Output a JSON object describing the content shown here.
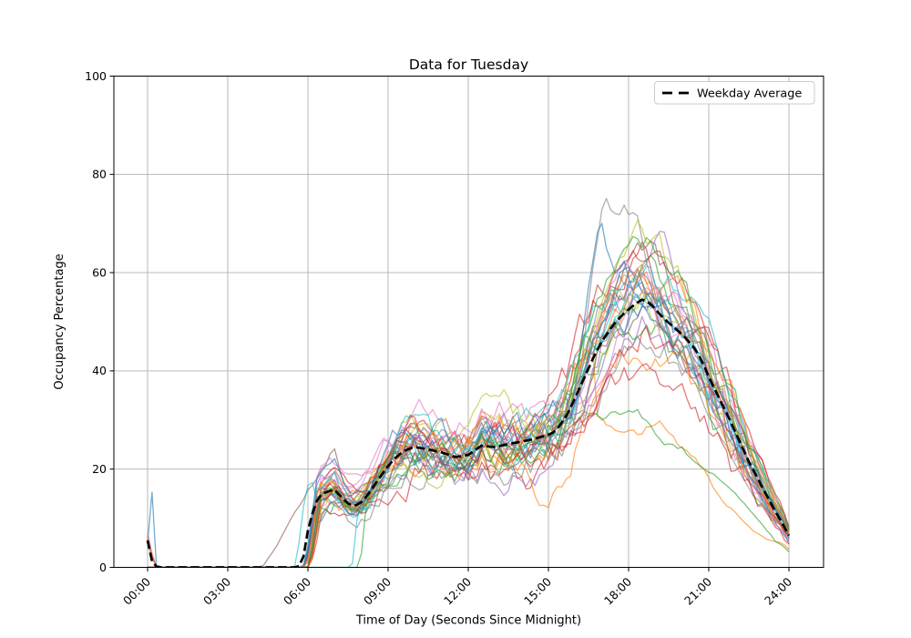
{
  "chart_data": {
    "type": "line",
    "title": "Data for Tuesday",
    "xlabel": "Time of Day (Seconds Since Midnight)",
    "ylabel": "Occupancy Percentage",
    "xlim_hours": [
      0,
      24
    ],
    "ylim": [
      0,
      100
    ],
    "grid": true,
    "grid_color": "#b0b0b0",
    "x_tick_hours": [
      0,
      3,
      6,
      9,
      12,
      15,
      18,
      21,
      24
    ],
    "x_tick_labels": [
      "00:00",
      "03:00",
      "06:00",
      "09:00",
      "12:00",
      "15:00",
      "18:00",
      "21:00",
      "24:00"
    ],
    "y_ticks": [
      0,
      20,
      40,
      60,
      80,
      100
    ],
    "legend": {
      "position": "upper right",
      "entries": [
        {
          "label": "Weekday Average",
          "style": "dashed",
          "color": "#000000"
        }
      ]
    },
    "average_series": {
      "name": "Weekday Average",
      "color": "#000000",
      "dash": true,
      "linewidth": 2.7,
      "points": [
        [
          0,
          5.5
        ],
        [
          0.08,
          3.2
        ],
        [
          0.17,
          1.2
        ],
        [
          0.3,
          0.2
        ],
        [
          0.5,
          0
        ],
        [
          2,
          0
        ],
        [
          4,
          0
        ],
        [
          5,
          0
        ],
        [
          5.6,
          0
        ],
        [
          5.75,
          0.6
        ],
        [
          5.9,
          3.5
        ],
        [
          6,
          7.5
        ],
        [
          6.17,
          11
        ],
        [
          6.33,
          13.5
        ],
        [
          6.5,
          14.8
        ],
        [
          6.75,
          15.5
        ],
        [
          7,
          15.8
        ],
        [
          7.25,
          14.3
        ],
        [
          7.5,
          13
        ],
        [
          7.75,
          12.4
        ],
        [
          8,
          13.3
        ],
        [
          8.25,
          14.8
        ],
        [
          8.5,
          16.8
        ],
        [
          8.75,
          18.8
        ],
        [
          9,
          20.6
        ],
        [
          9.25,
          22.2
        ],
        [
          9.5,
          23.3
        ],
        [
          9.75,
          24.1
        ],
        [
          10,
          24.5
        ],
        [
          10.5,
          24
        ],
        [
          11,
          23.4
        ],
        [
          11.5,
          22.5
        ],
        [
          11.75,
          22.6
        ],
        [
          12,
          22.9
        ],
        [
          12.25,
          23.8
        ],
        [
          12.5,
          24.8
        ],
        [
          12.75,
          24.6
        ],
        [
          13,
          24.5
        ],
        [
          13.5,
          25.1
        ],
        [
          14,
          25.6
        ],
        [
          14.5,
          26.2
        ],
        [
          15,
          27
        ],
        [
          15.25,
          27.6
        ],
        [
          15.5,
          29.5
        ],
        [
          15.75,
          31.5
        ],
        [
          16,
          34.5
        ],
        [
          16.25,
          37.5
        ],
        [
          16.5,
          40.5
        ],
        [
          16.75,
          43.5
        ],
        [
          17,
          46
        ],
        [
          17.25,
          48
        ],
        [
          17.5,
          49.8
        ],
        [
          17.75,
          51.3
        ],
        [
          18,
          52.5
        ],
        [
          18.25,
          53.6
        ],
        [
          18.5,
          54.5
        ],
        [
          18.75,
          54
        ],
        [
          19,
          52.6
        ],
        [
          19.25,
          51
        ],
        [
          19.5,
          49.8
        ],
        [
          19.75,
          48.6
        ],
        [
          20,
          47.4
        ],
        [
          20.25,
          46
        ],
        [
          20.5,
          44.3
        ],
        [
          20.75,
          42
        ],
        [
          21,
          38.8
        ],
        [
          21.25,
          36
        ],
        [
          21.5,
          33.2
        ],
        [
          21.75,
          30.5
        ],
        [
          22,
          27.5
        ],
        [
          22.25,
          24.5
        ],
        [
          22.5,
          21.5
        ],
        [
          22.75,
          19
        ],
        [
          23,
          16.3
        ],
        [
          23.25,
          13.8
        ],
        [
          23.5,
          11.3
        ],
        [
          23.75,
          9
        ],
        [
          24,
          6.5
        ]
      ]
    },
    "individual_traces": {
      "count": 34,
      "alpha": 0.62,
      "linewidth": 1.3,
      "palette": [
        "#1f77b4",
        "#ff7f0e",
        "#2ca02c",
        "#d62728",
        "#9467bd",
        "#8c564b",
        "#e377c2",
        "#7f7f7f",
        "#bcbd22",
        "#17becf"
      ],
      "series": [
        {
          "c": 0,
          "seed": 11,
          "fm": 1.0,
          "fe": 1.0,
          "keys": [
            [
              0,
              5
            ],
            [
              0.12,
              21
            ],
            [
              0.3,
              0
            ]
          ]
        },
        {
          "c": 1,
          "seed": 22,
          "fm": 0.95,
          "fe": 1.0,
          "keys": [
            [
              16.8,
              30
            ],
            [
              17.2,
              28
            ],
            [
              17.6,
              27
            ],
            [
              18,
              26.5
            ],
            [
              18.4,
              26
            ],
            [
              18.8,
              28
            ],
            [
              19.2,
              30
            ],
            [
              19.6,
              27
            ],
            [
              20,
              24
            ],
            [
              20.4,
              22.5
            ],
            [
              20.8,
              20
            ],
            [
              21.2,
              15.5
            ],
            [
              21.6,
              13
            ],
            [
              22,
              11
            ],
            [
              22.4,
              9
            ],
            [
              22.8,
              7
            ],
            [
              23.2,
              5.5
            ],
            [
              23.6,
              5
            ],
            [
              24,
              3.5
            ]
          ]
        },
        {
          "c": 2,
          "seed": 33,
          "fm": 0.9,
          "fe": 1.0,
          "sv": 6.5,
          "keys": [
            [
              15.9,
              28
            ],
            [
              16.3,
              30.5
            ],
            [
              16.7,
              31
            ],
            [
              17.1,
              30
            ],
            [
              17.5,
              31.5
            ],
            [
              17.9,
              30.5
            ],
            [
              18.3,
              31
            ],
            [
              18.7,
              29
            ],
            [
              19.1,
              26.5
            ],
            [
              19.5,
              25
            ],
            [
              20,
              24
            ],
            [
              20.5,
              22
            ],
            [
              21,
              20
            ],
            [
              21.5,
              17
            ],
            [
              22,
              14
            ],
            [
              22.5,
              11
            ],
            [
              23,
              8
            ],
            [
              23.5,
              5
            ],
            [
              24,
              3
            ]
          ]
        },
        {
          "c": 3,
          "seed": 44,
          "fm": 0.85,
          "fe": 1.15,
          "sv": 5,
          "dip": [
            14.2,
            1.1,
            0.45
          ]
        },
        {
          "c": 4,
          "seed": 55,
          "fm": 1.0,
          "fe": 1.0,
          "keys": [
            [
              16.3,
              33
            ],
            [
              16.8,
              38
            ],
            [
              17.2,
              44
            ],
            [
              17.6,
              50
            ],
            [
              18,
              55
            ],
            [
              18.4,
              60
            ],
            [
              18.8,
              64
            ],
            [
              19.1,
              68
            ],
            [
              19.3,
              70
            ],
            [
              19.6,
              63
            ],
            [
              19.9,
              56
            ],
            [
              20.3,
              50
            ],
            [
              20.7,
              45
            ],
            [
              21,
              40
            ],
            [
              21.5,
              34
            ],
            [
              22,
              27
            ],
            [
              22.5,
              21
            ],
            [
              23,
              15
            ],
            [
              23.5,
              10
            ],
            [
              24,
              6
            ]
          ]
        },
        {
          "c": 5,
          "seed": 66,
          "fm": 1.0,
          "fe": 1.1,
          "rise": 4.3,
          "keys": [
            [
              4.3,
              0
            ],
            [
              7.0,
              24
            ],
            [
              7.3,
              17
            ],
            [
              7.6,
              15
            ]
          ]
        },
        {
          "c": 6,
          "seed": 77,
          "fm": 1.1,
          "fe": 1.1
        },
        {
          "c": 7,
          "seed": 88,
          "fm": 1.0,
          "fe": 1.0,
          "keys": [
            [
              15.7,
              25
            ],
            [
              16.0,
              32
            ],
            [
              16.3,
              45
            ],
            [
              16.6,
              60
            ],
            [
              16.9,
              70
            ],
            [
              17.1,
              76
            ],
            [
              17.35,
              72
            ],
            [
              17.6,
              70
            ],
            [
              17.85,
              73
            ],
            [
              18.05,
              70
            ],
            [
              18.3,
              72
            ],
            [
              18.6,
              63
            ],
            [
              18.9,
              57
            ],
            [
              19.2,
              50
            ],
            [
              19.6,
              44
            ],
            [
              20,
              40
            ],
            [
              20.5,
              36
            ],
            [
              21,
              31
            ],
            [
              21.5,
              27
            ],
            [
              22,
              22
            ],
            [
              22.5,
              17
            ],
            [
              23,
              13
            ],
            [
              23.5,
              10
            ],
            [
              24,
              8
            ]
          ]
        },
        {
          "c": 8,
          "seed": 99,
          "fm": 1.15,
          "fe": 0.95
        },
        {
          "c": 9,
          "seed": 110,
          "fm": 1.05,
          "fe": 1.0,
          "rise": 5.5,
          "keys": [
            [
              5.5,
              0
            ],
            [
              5.7,
              6
            ],
            [
              5.9,
              16
            ],
            [
              6.2,
              18
            ]
          ]
        },
        {
          "c": 0,
          "seed": 121,
          "fm": 0.9,
          "fe": 1.1
        },
        {
          "c": 1,
          "seed": 132,
          "fm": 1.2,
          "fe": 1.0
        },
        {
          "c": 2,
          "seed": 143,
          "fm": 0.95,
          "fe": 0.9,
          "rise": 7.95,
          "keys": [
            [
              7.95,
              0
            ],
            [
              8.2,
              14
            ],
            [
              8.5,
              17
            ]
          ]
        },
        {
          "c": 3,
          "seed": 154,
          "fm": 1.05,
          "fe": 1.2
        },
        {
          "c": 4,
          "seed": 165,
          "fm": 0.8,
          "fe": 0.9
        },
        {
          "c": 5,
          "seed": 176,
          "fm": 1.0,
          "fe": 1.0
        },
        {
          "c": 6,
          "seed": 187,
          "fm": 1.25,
          "fe": 1.15
        },
        {
          "c": 7,
          "seed": 198,
          "fm": 0.75,
          "fe": 0.85
        },
        {
          "c": 8,
          "seed": 209,
          "fm": 1.1,
          "fe": 1.05
        },
        {
          "c": 9,
          "seed": 220,
          "fm": 0.9,
          "fe": 1.15,
          "rise": 7.65,
          "keys": [
            [
              7.65,
              0
            ],
            [
              7.85,
              11
            ],
            [
              8.1,
              16
            ]
          ]
        },
        {
          "c": 0,
          "seed": 231,
          "fm": 1.1,
          "fe": 1.0,
          "keys": [
            [
              15.8,
              28
            ],
            [
              16.2,
              42
            ],
            [
              16.5,
              55
            ],
            [
              16.8,
              66
            ],
            [
              17,
              69
            ],
            [
              17.2,
              64
            ],
            [
              17.5,
              60
            ],
            [
              17.8,
              63
            ],
            [
              18.1,
              58
            ],
            [
              18.45,
              55
            ],
            [
              18.8,
              52
            ],
            [
              19.1,
              50
            ],
            [
              19.5,
              47
            ],
            [
              19.9,
              44
            ],
            [
              20.3,
              42
            ],
            [
              20.7,
              38
            ],
            [
              21,
              35
            ],
            [
              21.5,
              30
            ],
            [
              22,
              25
            ],
            [
              22.5,
              19
            ],
            [
              23,
              14
            ],
            [
              23.5,
              9
            ],
            [
              24,
              5
            ]
          ]
        },
        {
          "c": 1,
          "seed": 242,
          "fm": 1.0,
          "fe": 0.85,
          "dip": [
            14.8,
            1.0,
            0.3
          ]
        },
        {
          "c": 2,
          "seed": 253,
          "fm": 0.85,
          "fe": 1.05
        },
        {
          "c": 3,
          "seed": 264,
          "fm": 0.95,
          "fe": 0.75
        },
        {
          "c": 4,
          "seed": 275,
          "fm": 1.1,
          "fe": 1.0
        },
        {
          "c": 5,
          "seed": 286,
          "fm": 0.9,
          "fe": 1.05
        },
        {
          "c": 6,
          "seed": 297,
          "fm": 1.05,
          "fe": 0.9,
          "sv": 7
        },
        {
          "c": 7,
          "seed": 308,
          "fm": 1.0,
          "fe": 1.1
        },
        {
          "c": 8,
          "seed": 319,
          "fm": 0.9,
          "fe": 1.2
        },
        {
          "c": 9,
          "seed": 330,
          "fm": 1.1,
          "fe": 1.0
        },
        {
          "c": 0,
          "seed": 341,
          "fm": 1.05,
          "fe": 0.95
        },
        {
          "c": 1,
          "seed": 352,
          "fm": 0.95,
          "fe": 1.1,
          "sv": 6
        },
        {
          "c": 2,
          "seed": 363,
          "fm": 1.0,
          "fe": 1.15
        },
        {
          "c": 3,
          "seed": 374,
          "fm": 1.1,
          "fe": 0.9
        }
      ]
    }
  }
}
